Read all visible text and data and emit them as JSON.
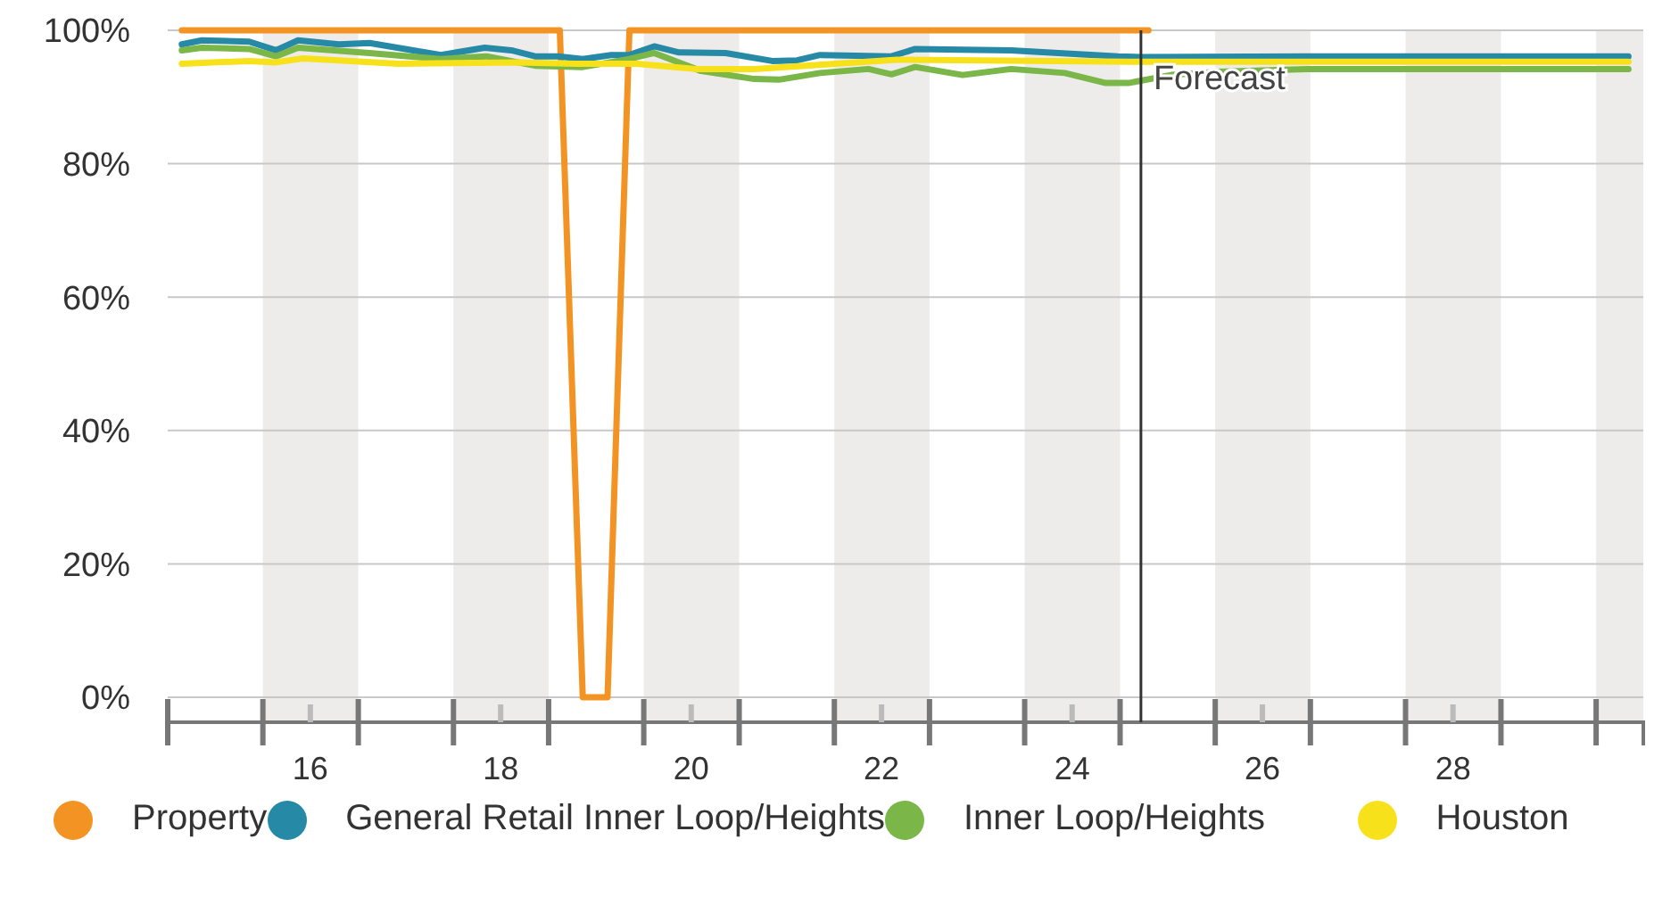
{
  "chart_data": {
    "type": "line",
    "xlim": [
      "2015-01-01",
      "2030-07-01"
    ],
    "xticks": [
      {
        "value": "2016-07-01",
        "label": "16"
      },
      {
        "value": "2018-07-01",
        "label": "18"
      },
      {
        "value": "2020-07-01",
        "label": "20"
      },
      {
        "value": "2022-07-01",
        "label": "22"
      },
      {
        "value": "2024-07-01",
        "label": "24"
      },
      {
        "value": "2026-07-01",
        "label": "26"
      },
      {
        "value": "2028-07-01",
        "label": "28"
      }
    ],
    "ylim": [
      0,
      100
    ],
    "yticks": [
      {
        "value": 0,
        "label": "0%"
      },
      {
        "value": 20,
        "label": "20%"
      },
      {
        "value": 40,
        "label": "40%"
      },
      {
        "value": 60,
        "label": "60%"
      },
      {
        "value": 80,
        "label": "80%"
      },
      {
        "value": 100,
        "label": "100%"
      }
    ],
    "grid": "y",
    "legend": "bottom",
    "marker": "none",
    "line_style": "solid",
    "bands": [
      {
        "axis": "x",
        "from": "2016-01-01",
        "to": "2017-01-01",
        "color": "#eeeceb"
      },
      {
        "axis": "x",
        "from": "2018-01-01",
        "to": "2019-01-01",
        "color": "#eeeceb"
      },
      {
        "axis": "x",
        "from": "2020-01-01",
        "to": "2021-01-01",
        "color": "#eeeceb"
      },
      {
        "axis": "x",
        "from": "2022-01-01",
        "to": "2023-01-01",
        "color": "#eeeceb"
      },
      {
        "axis": "x",
        "from": "2024-01-01",
        "to": "2025-01-01",
        "color": "#eeeceb"
      },
      {
        "axis": "x",
        "from": "2026-01-01",
        "to": "2027-01-01",
        "color": "#eeeceb"
      },
      {
        "axis": "x",
        "from": "2028-01-01",
        "to": "2029-01-01",
        "color": "#eeeceb"
      },
      {
        "axis": "x",
        "from": "2030-01-01",
        "to": "2030-07-01",
        "color": "#eeeceb"
      }
    ],
    "ref_lines": [
      {
        "axis": "x",
        "value": "2025-03-22",
        "label": "Forecast",
        "color": "#333333"
      }
    ],
    "series": [
      {
        "name": "Property",
        "color": "#f39323",
        "x": [
          "2015-02-24",
          "2019-02-13",
          "2019-05-12",
          "2019-08-15",
          "2019-11-07",
          "2025-04-20"
        ],
        "values": [
          100,
          100,
          0,
          0,
          100,
          100
        ]
      },
      {
        "name": "General Retail Inner Loop/Heights",
        "color": "#2689a6",
        "x": [
          "2015-02-24",
          "2015-05-12",
          "2015-11-10",
          "2016-02-20",
          "2016-05-15",
          "2016-10-19",
          "2017-02-13",
          "2017-11-14",
          "2018-05-01",
          "2018-08-11",
          "2018-11-10",
          "2019-02-06",
          "2019-05-12",
          "2019-08-29",
          "2019-11-07",
          "2020-02-10",
          "2020-05-12",
          "2020-11-10",
          "2021-05-08",
          "2021-08-11",
          "2021-11-07",
          "2022-08-08",
          "2022-11-07",
          "2023-11-10",
          "2024-12-24",
          "2025-03-22",
          "2026-12-20",
          "2030-05-05"
        ],
        "values": [
          97.9,
          98.5,
          98.3,
          97.0,
          98.5,
          97.9,
          98.1,
          96.3,
          97.4,
          97.0,
          96.1,
          96.1,
          95.7,
          96.3,
          96.3,
          97.6,
          96.7,
          96.6,
          95.4,
          95.5,
          96.3,
          96.1,
          97.2,
          97.0,
          96.1,
          96.0,
          96.1,
          96.1
        ]
      },
      {
        "name": "Inner Loop/Heights",
        "color": "#7ab648",
        "x": [
          "2015-02-24",
          "2015-05-12",
          "2015-11-10",
          "2016-02-20",
          "2016-05-15",
          "2017-02-13",
          "2017-11-14",
          "2018-05-08",
          "2018-11-10",
          "2019-05-12",
          "2019-11-07",
          "2020-02-10",
          "2020-08-08",
          "2021-02-28",
          "2021-06-03",
          "2021-11-07",
          "2022-05-12",
          "2022-08-08",
          "2022-11-07",
          "2023-05-08",
          "2023-11-10",
          "2024-06-03",
          "2024-11-07",
          "2025-02-03",
          "2025-07-17",
          "2026-01-12",
          "2026-12-20",
          "2030-05-05"
        ],
        "values": [
          97.0,
          97.4,
          97.2,
          96.1,
          97.4,
          96.6,
          95.7,
          96.1,
          94.7,
          94.5,
          95.7,
          96.6,
          93.9,
          92.7,
          92.6,
          93.6,
          94.2,
          93.4,
          94.5,
          93.3,
          94.2,
          93.6,
          92.1,
          92.1,
          93.3,
          93.8,
          94.2,
          94.2
        ]
      },
      {
        "name": "Houston",
        "color": "#f7e11b",
        "x": [
          "2015-02-24",
          "2015-11-10",
          "2016-02-20",
          "2016-06-03",
          "2017-06-03",
          "2018-09-02",
          "2019-04-16",
          "2019-12-06",
          "2020-07-17",
          "2021-02-28",
          "2022-08-29",
          "2025-02-03",
          "2026-12-20",
          "2030-05-05"
        ],
        "values": [
          95.0,
          95.4,
          95.2,
          95.8,
          95.0,
          95.2,
          95.0,
          95.0,
          94.2,
          94.2,
          95.6,
          95.3,
          95.3,
          95.3
        ]
      }
    ]
  }
}
